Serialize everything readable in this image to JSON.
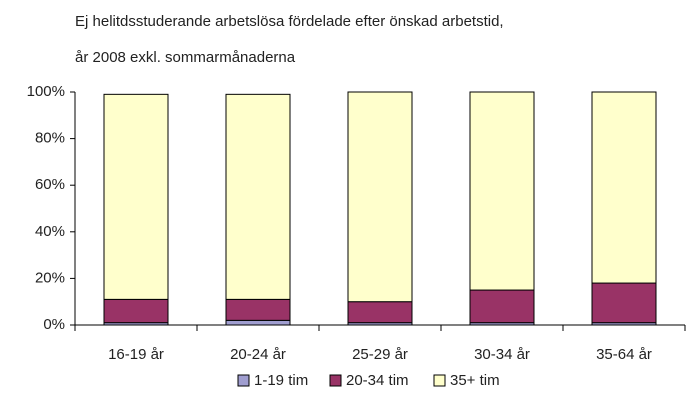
{
  "chart_data": {
    "type": "stacked_bar",
    "title": [
      "Ej helitdsstuderande arbetslösa fördelade efter önskad arbetstid,",
      "år 2008 exkl. sommarmånaderna"
    ],
    "categories": [
      "16-19 år",
      "20-24 år",
      "25-29 år",
      "30-34 år",
      "35-64 år"
    ],
    "series": [
      {
        "name": "1-19 tim",
        "color": "#a09ed0",
        "values": [
          1,
          2,
          1,
          1,
          1
        ]
      },
      {
        "name": "20-34 tim",
        "color": "#993366",
        "values": [
          10,
          9,
          9,
          14,
          17
        ]
      },
      {
        "name": "35+ tim",
        "color": "#ffffcc",
        "values": [
          88,
          88,
          90,
          85,
          82
        ]
      }
    ],
    "ylim": [
      0,
      100
    ],
    "yticks": [
      {
        "value": 0,
        "label": "0%"
      },
      {
        "value": 20,
        "label": "20%"
      },
      {
        "value": 40,
        "label": "40%"
      },
      {
        "value": 60,
        "label": "60%"
      },
      {
        "value": 80,
        "label": "80%"
      },
      {
        "value": 100,
        "label": "100%"
      }
    ],
    "legend": "bottom"
  }
}
